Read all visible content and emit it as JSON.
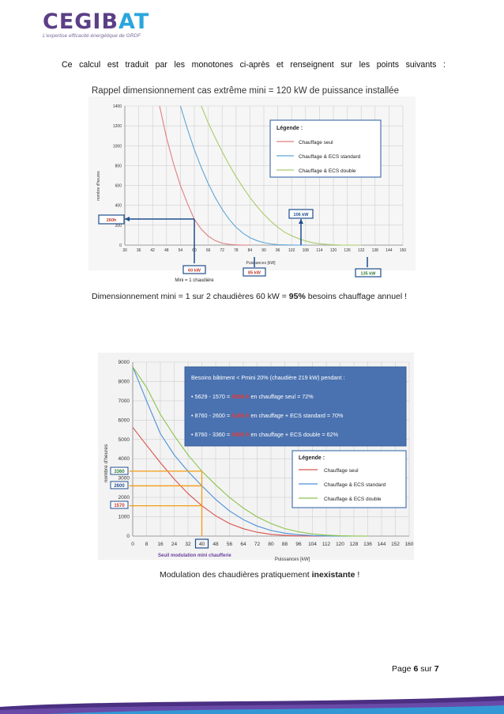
{
  "header": {
    "logo_word_a": "CEGIB",
    "logo_word_b": "AT",
    "logo_tagline": "L'expertise efficacité énergétique de GRDF"
  },
  "intro_text": "Ce calcul est traduit par les monotones ci-après et renseignent sur les points suivants :",
  "figure1": {
    "title": "Rappel dimensionnement cas extrême mini = 120 kW de puissance installée",
    "caption_pre": "Dimensionnement mini = 1 sur 2 chaudières 60 kW = ",
    "caption_bold": "95%",
    "caption_post": " besoins chauffage annuel !",
    "legend_title": "Légende :",
    "callouts": {
      "hours": "260h",
      "kw60": "60 kW",
      "kw85": "85 kW",
      "kw106": "106 kW",
      "kw135": "135 kW",
      "mini": "Mini = 1 chaudière"
    }
  },
  "figure2": {
    "box_title": "Besoins bâtiment < Pmini 20% (chaudière 219 kW) pendant :",
    "lines": [
      {
        "pre": "• 5629 - 1570 = ",
        "hl": "4059 h",
        "post": " en chauffage seul  = 72%"
      },
      {
        "pre": "• 8760 - 2600 = ",
        "hl": "6160 h",
        "post": " en chauffage + ECS standard = 70%"
      },
      {
        "pre": "• 8760 - 3360 = ",
        "hl": "5400 h",
        "post": " en chauffage + ECS double = 62%"
      }
    ],
    "legend_title": "Légende :",
    "threshold_label": "Seuil modulation mini chaufferie",
    "caption_pre": "Modulation des chaudières pratiquement ",
    "caption_bold": "inexistante",
    "caption_post": " !",
    "callouts": {
      "h3360": "3360",
      "h2600": "2600",
      "h1570": "1570"
    }
  },
  "chart_data": [
    {
      "type": "line",
      "title": "Rappel dimensionnement cas extrême mini = 120 kW de puissance installée",
      "xlabel": "Puissances [kW]",
      "ylabel": "nombre d'heures",
      "x_ticks": [
        30,
        36,
        42,
        48,
        54,
        60,
        66,
        72,
        78,
        84,
        90,
        96,
        102,
        108,
        114,
        120,
        126,
        132,
        138,
        144,
        150
      ],
      "y_ticks": [
        0,
        200,
        400,
        600,
        800,
        1000,
        1200,
        1400
      ],
      "xlim": [
        30,
        150
      ],
      "ylim": [
        0,
        1400
      ],
      "grid": true,
      "legend_position": "top-right",
      "series": [
        {
          "name": "Chauffage seul",
          "color": "#e07e7e",
          "x": [
            45,
            48,
            51,
            54,
            57,
            60,
            63,
            66,
            69,
            72,
            75,
            78,
            81,
            84
          ],
          "y": [
            1400,
            1080,
            820,
            600,
            420,
            260,
            160,
            90,
            45,
            20,
            8,
            2,
            0,
            0
          ]
        },
        {
          "name": "Chauffage & ECS standard",
          "color": "#5fa6d6",
          "x": [
            54,
            57,
            60,
            63,
            66,
            69,
            72,
            75,
            78,
            81,
            84,
            87,
            90,
            93,
            96,
            99,
            102,
            105,
            108
          ],
          "y": [
            1400,
            1170,
            960,
            780,
            620,
            480,
            360,
            260,
            180,
            120,
            75,
            45,
            25,
            12,
            5,
            2,
            1,
            0,
            0
          ]
        },
        {
          "name": "Chauffage & ECS double",
          "color": "#a8cc6a",
          "x": [
            63,
            66,
            69,
            72,
            75,
            78,
            81,
            84,
            87,
            90,
            93,
            96,
            99,
            102,
            105,
            108,
            111,
            114,
            117,
            120,
            123,
            126,
            129,
            132
          ],
          "y": [
            1400,
            1230,
            1080,
            940,
            810,
            690,
            580,
            480,
            390,
            310,
            240,
            180,
            130,
            95,
            65,
            42,
            25,
            14,
            7,
            3,
            1,
            0,
            0,
            0
          ]
        }
      ]
    },
    {
      "type": "line",
      "xlabel": "Puissances [kW]",
      "ylabel": "nombre d'heures",
      "x_ticks": [
        0,
        8,
        16,
        24,
        32,
        40,
        48,
        56,
        64,
        72,
        80,
        88,
        96,
        104,
        112,
        120,
        128,
        136,
        144,
        152,
        160
      ],
      "y_ticks": [
        0,
        1000,
        2000,
        3000,
        4000,
        5000,
        6000,
        7000,
        8000,
        9000
      ],
      "xlim": [
        0,
        160
      ],
      "ylim": [
        0,
        9000
      ],
      "grid": true,
      "legend_position": "bottom-right",
      "series": [
        {
          "name": "Chauffage seul",
          "color": "#d9534f",
          "x": [
            0,
            8,
            16,
            24,
            32,
            40,
            48,
            56,
            64,
            72,
            80,
            88,
            96,
            104,
            112
          ],
          "y": [
            5629,
            4700,
            3800,
            2950,
            2200,
            1570,
            1050,
            650,
            380,
            200,
            90,
            35,
            10,
            2,
            0
          ]
        },
        {
          "name": "Chauffage & ECS standard",
          "color": "#4a90d9",
          "x": [
            0,
            8,
            16,
            24,
            32,
            40,
            48,
            56,
            64,
            72,
            80,
            88,
            96,
            104,
            112,
            120,
            128
          ],
          "y": [
            8760,
            7000,
            5300,
            4200,
            3350,
            2600,
            1900,
            1300,
            850,
            520,
            290,
            150,
            70,
            25,
            8,
            2,
            0
          ]
        },
        {
          "name": "Chauffage & ECS double",
          "color": "#8bc34a",
          "x": [
            0,
            8,
            16,
            24,
            32,
            40,
            48,
            56,
            64,
            72,
            80,
            88,
            96,
            104,
            112,
            120,
            128,
            136
          ],
          "y": [
            8760,
            7700,
            6300,
            5200,
            4200,
            3360,
            2650,
            2000,
            1450,
            1000,
            650,
            390,
            220,
            110,
            50,
            18,
            5,
            0
          ]
        }
      ]
    }
  ]
}
